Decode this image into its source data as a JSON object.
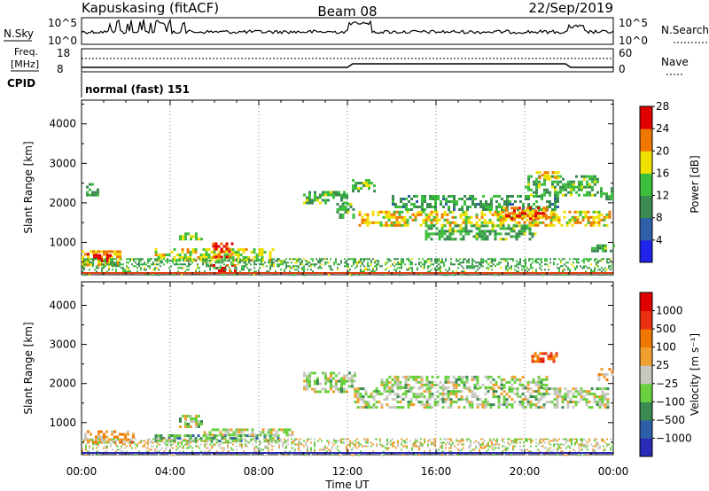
{
  "header": {
    "station": "Kapuskasing (fitACF)",
    "beam": "Beam 08",
    "date": "22/Sep/2019"
  },
  "strip": {
    "nsky_label": "N.Sky",
    "nsky_ticks": [
      "10^5",
      "10^0"
    ],
    "nsearch_label": "N.Search",
    "freq_label_1": "Freq.",
    "freq_label_2": "[MHz]",
    "freq_ticks": [
      "18",
      "8"
    ],
    "nave_label": "Nave",
    "nave_ticks": [
      "60",
      "0"
    ],
    "cpid_label": "CPID",
    "cpid_value": "normal (fast) 151"
  },
  "chart_data": [
    {
      "type": "heatmap",
      "parameter": "Power",
      "ylabel": "Slant Range [km]",
      "xlabel": "",
      "colorbar_label": "Power [dB]",
      "colorbar_ticks": [
        4,
        8,
        12,
        16,
        20,
        24,
        28
      ],
      "colorbar_colors": [
        "#1f22e8",
        "#2e5fa8",
        "#3a8a52",
        "#3cbf3c",
        "#f0e000",
        "#f07800",
        "#e00000"
      ],
      "xlim": [
        0,
        24
      ],
      "ylim": [
        180,
        4600
      ],
      "yticks": [
        1000,
        2000,
        3000,
        4000
      ],
      "regions": [
        {
          "x": [
            0.0,
            1.7
          ],
          "y": [
            450,
            800
          ],
          "level": 0.72
        },
        {
          "x": [
            0.4,
            1.3
          ],
          "y": [
            500,
            700
          ],
          "level": 0.95
        },
        {
          "x": [
            3.3,
            8.6
          ],
          "y": [
            550,
            850
          ],
          "level": 0.6
        },
        {
          "x": [
            5.9,
            6.8
          ],
          "y": [
            650,
            1000
          ],
          "level": 0.85
        },
        {
          "x": [
            5.8,
            7.0
          ],
          "y": [
            280,
            450
          ],
          "level": 0.95
        },
        {
          "x": [
            4.4,
            5.4
          ],
          "y": [
            1050,
            1250
          ],
          "level": 0.55
        },
        {
          "x": [
            0.2,
            0.7
          ],
          "y": [
            2200,
            2500
          ],
          "level": 0.4
        },
        {
          "x": [
            10.0,
            12.0
          ],
          "y": [
            2000,
            2300
          ],
          "level": 0.45
        },
        {
          "x": [
            11.5,
            12.3
          ],
          "y": [
            1600,
            2000
          ],
          "level": 0.45
        },
        {
          "x": [
            12.2,
            13.4
          ],
          "y": [
            2300,
            2600
          ],
          "level": 0.5
        },
        {
          "x": [
            12.5,
            23.8
          ],
          "y": [
            1400,
            1800
          ],
          "level": 0.65
        },
        {
          "x": [
            14.0,
            21.5
          ],
          "y": [
            1800,
            2200
          ],
          "level": 0.4
        },
        {
          "x": [
            15.5,
            20.5
          ],
          "y": [
            1050,
            1450
          ],
          "level": 0.45
        },
        {
          "x": [
            19.0,
            21.0
          ],
          "y": [
            1600,
            1900
          ],
          "level": 0.82
        },
        {
          "x": [
            20.0,
            23.3
          ],
          "y": [
            2200,
            2700
          ],
          "level": 0.45
        },
        {
          "x": [
            20.5,
            21.5
          ],
          "y": [
            2600,
            2800
          ],
          "level": 0.7
        },
        {
          "x": [
            23.4,
            24.0
          ],
          "y": [
            2100,
            2400
          ],
          "level": 0.45
        },
        {
          "x": [
            23.0,
            24.0
          ],
          "y": [
            800,
            950
          ],
          "level": 0.45
        },
        {
          "x": [
            0.0,
            24.0
          ],
          "y": [
            180,
            600
          ],
          "level": 0.45
        }
      ]
    },
    {
      "type": "heatmap",
      "parameter": "Velocity",
      "ylabel": "Slant Range [km]",
      "xlabel": "Time UT",
      "colorbar_label": "Velocity [m s⁻¹]",
      "colorbar_ticks": [
        "1000",
        "500",
        "100",
        "25",
        "−25",
        "−100",
        "−500",
        "−1000"
      ],
      "colorbar_colors": [
        "#2a2ab8",
        "#2d5fa8",
        "#3a8a52",
        "#6ad040",
        "#c8c8c0",
        "#f0a030",
        "#f07800",
        "#e83010",
        "#e00000"
      ],
      "xlim": [
        0,
        24
      ],
      "ylim": [
        180,
        4600
      ],
      "yticks": [
        1000,
        2000,
        3000,
        4000
      ],
      "xticks": [
        "00:00",
        "04:00",
        "08:00",
        "12:00",
        "16:00",
        "20:00",
        "00:00"
      ],
      "regions": [
        {
          "x": [
            0.0,
            2.3
          ],
          "y": [
            500,
            800
          ],
          "level": 0.65
        },
        {
          "x": [
            3.3,
            9.0
          ],
          "y": [
            550,
            700
          ],
          "level": 0.3
        },
        {
          "x": [
            5.5,
            9.5
          ],
          "y": [
            700,
            850
          ],
          "level": 0.48
        },
        {
          "x": [
            4.4,
            5.4
          ],
          "y": [
            900,
            1200
          ],
          "level": 0.45
        },
        {
          "x": [
            10.0,
            12.3
          ],
          "y": [
            1800,
            2300
          ],
          "level": 0.45
        },
        {
          "x": [
            12.3,
            23.8
          ],
          "y": [
            1400,
            1900
          ],
          "level": 0.45
        },
        {
          "x": [
            13.5,
            21.0
          ],
          "y": [
            1900,
            2200
          ],
          "level": 0.45
        },
        {
          "x": [
            20.3,
            21.5
          ],
          "y": [
            2550,
            2800
          ],
          "level": 0.75
        },
        {
          "x": [
            23.3,
            24.0
          ],
          "y": [
            2100,
            2400
          ],
          "level": 0.62
        },
        {
          "x": [
            0.0,
            24.0
          ],
          "y": [
            180,
            600
          ],
          "level": 0.5
        }
      ]
    }
  ]
}
